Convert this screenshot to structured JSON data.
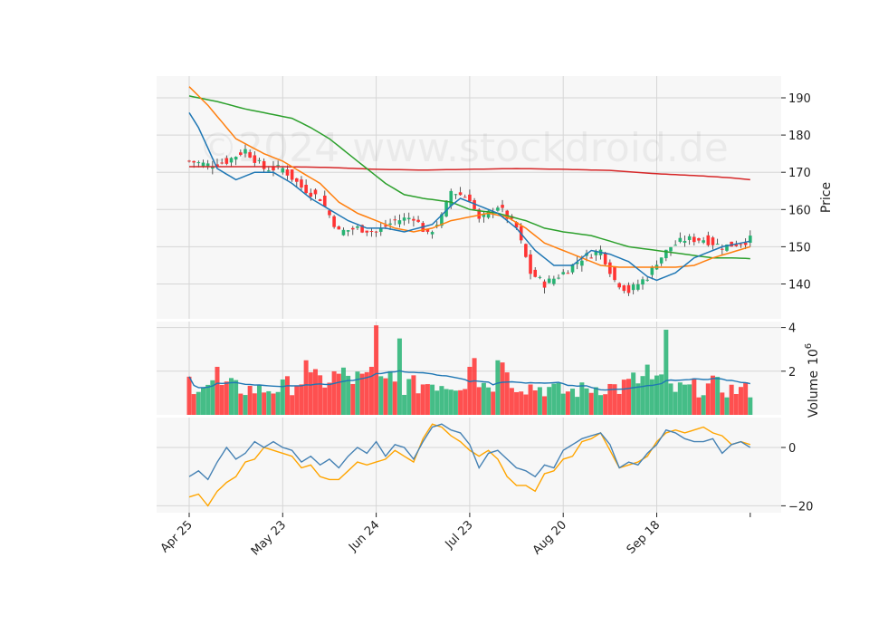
{
  "watermark": "©2024 www.stockdroid.de",
  "colors": {
    "up": "#26b373",
    "down": "#ff3333",
    "sma10": "#1f77b4",
    "sma20": "#ff7f0e",
    "sma50": "#2ca02c",
    "sma200": "#d62728",
    "volume_avg": "#1f77b4",
    "osc_fast": "#4682b4",
    "osc_slow": "#ffa500",
    "panel_bg": "#f7f7f7",
    "grid": "#d6d6d6"
  },
  "chart_data": {
    "type": "candlestick",
    "x_tick_labels": [
      "Apr 25",
      "May 23",
      "Jun 24",
      "Jul 23",
      "Aug 20",
      "Sep 18"
    ],
    "x_tick_index": [
      0,
      20,
      40,
      60,
      80,
      100
    ],
    "price_axis": {
      "label": "Price",
      "ylim": [
        135,
        195
      ],
      "ticks": [
        140,
        150,
        160,
        170,
        180,
        190
      ]
    },
    "volume_axis": {
      "label": "Volume",
      "multiplier_label": "10",
      "multiplier_exp": "6",
      "ylim": [
        0,
        4.2
      ],
      "ticks": [
        2,
        4
      ]
    },
    "oscillator_axis": {
      "ylim": [
        -22,
        11
      ],
      "ticks": [
        -20,
        0
      ]
    },
    "price_anchors": [
      [
        0,
        173
      ],
      [
        4,
        172
      ],
      [
        8,
        173
      ],
      [
        12,
        176
      ],
      [
        16,
        171
      ],
      [
        20,
        171
      ],
      [
        24,
        166
      ],
      [
        28,
        163
      ],
      [
        32,
        154
      ],
      [
        36,
        155
      ],
      [
        40,
        154
      ],
      [
        44,
        157
      ],
      [
        48,
        158
      ],
      [
        51,
        153
      ],
      [
        54,
        158
      ],
      [
        56,
        165
      ],
      [
        60,
        163
      ],
      [
        62,
        157
      ],
      [
        66,
        161
      ],
      [
        70,
        155
      ],
      [
        73,
        143
      ],
      [
        76,
        140
      ],
      [
        80,
        143
      ],
      [
        84,
        147
      ],
      [
        88,
        149
      ],
      [
        91,
        141
      ],
      [
        94,
        138
      ],
      [
        98,
        142
      ],
      [
        100,
        146
      ],
      [
        103,
        150
      ],
      [
        106,
        152
      ],
      [
        110,
        152
      ],
      [
        114,
        150
      ],
      [
        118,
        151
      ],
      [
        120,
        152
      ]
    ],
    "volume_anchors": [
      [
        0,
        1.6
      ],
      [
        5,
        1.4
      ],
      [
        10,
        1.3
      ],
      [
        15,
        1.2
      ],
      [
        20,
        1.3
      ],
      [
        24,
        1.7
      ],
      [
        28,
        1.6
      ],
      [
        32,
        1.9
      ],
      [
        36,
        1.7
      ],
      [
        40,
        1.6
      ],
      [
        44,
        1.5
      ],
      [
        48,
        1.4
      ],
      [
        52,
        1.6
      ],
      [
        56,
        1.5
      ],
      [
        60,
        1.7
      ],
      [
        64,
        1.5
      ],
      [
        68,
        1.8
      ],
      [
        72,
        1.4
      ],
      [
        76,
        1.3
      ],
      [
        80,
        1.1
      ],
      [
        84,
        1.2
      ],
      [
        88,
        1.4
      ],
      [
        92,
        1.3
      ],
      [
        96,
        1.7
      ],
      [
        100,
        1.6
      ],
      [
        104,
        1.2
      ],
      [
        108,
        1.3
      ],
      [
        112,
        1.4
      ],
      [
        116,
        1.2
      ],
      [
        120,
        1.2
      ]
    ],
    "volume_spikes": [
      [
        6,
        2.2
      ],
      [
        25,
        2.5
      ],
      [
        39,
        2.2
      ],
      [
        40,
        4.1
      ],
      [
        43,
        2.0
      ],
      [
        45,
        3.5
      ],
      [
        60,
        2.2
      ],
      [
        61,
        2.6
      ],
      [
        66,
        2.5
      ],
      [
        67,
        2.4
      ],
      [
        98,
        2.3
      ],
      [
        102,
        3.9
      ]
    ],
    "sma10_anchors": [
      [
        0,
        186
      ],
      [
        2,
        182
      ],
      [
        6,
        171
      ],
      [
        10,
        168
      ],
      [
        14,
        170
      ],
      [
        18,
        170
      ],
      [
        22,
        167
      ],
      [
        26,
        163
      ],
      [
        30,
        160
      ],
      [
        34,
        157
      ],
      [
        38,
        155
      ],
      [
        42,
        155
      ],
      [
        46,
        154
      ],
      [
        52,
        156
      ],
      [
        56,
        161
      ],
      [
        58,
        163
      ],
      [
        62,
        161
      ],
      [
        66,
        159
      ],
      [
        70,
        155
      ],
      [
        74,
        149
      ],
      [
        78,
        145
      ],
      [
        82,
        145
      ],
      [
        86,
        149
      ],
      [
        90,
        148
      ],
      [
        94,
        146
      ],
      [
        98,
        142
      ],
      [
        100,
        141
      ],
      [
        104,
        143
      ],
      [
        108,
        147
      ],
      [
        114,
        150
      ],
      [
        120,
        151.5
      ]
    ],
    "sma20_anchors": [
      [
        0,
        193
      ],
      [
        4,
        188
      ],
      [
        10,
        179
      ],
      [
        16,
        175
      ],
      [
        20,
        173
      ],
      [
        24,
        170
      ],
      [
        28,
        167
      ],
      [
        32,
        162
      ],
      [
        36,
        159
      ],
      [
        40,
        157
      ],
      [
        44,
        155
      ],
      [
        48,
        154
      ],
      [
        52,
        155
      ],
      [
        56,
        157
      ],
      [
        60,
        158
      ],
      [
        64,
        159
      ],
      [
        68,
        158
      ],
      [
        72,
        155
      ],
      [
        76,
        151
      ],
      [
        80,
        149
      ],
      [
        84,
        147
      ],
      [
        88,
        145
      ],
      [
        92,
        144.5
      ],
      [
        96,
        144.5
      ],
      [
        100,
        144.5
      ],
      [
        104,
        144.5
      ],
      [
        108,
        145
      ],
      [
        112,
        147
      ],
      [
        116,
        148.5
      ],
      [
        120,
        150
      ]
    ],
    "sma50_anchors": [
      [
        0,
        190.5
      ],
      [
        6,
        189
      ],
      [
        12,
        187
      ],
      [
        18,
        185.5
      ],
      [
        22,
        184.5
      ],
      [
        26,
        182
      ],
      [
        30,
        179
      ],
      [
        34,
        175
      ],
      [
        38,
        171
      ],
      [
        42,
        167
      ],
      [
        46,
        164
      ],
      [
        50,
        163
      ],
      [
        56,
        162
      ],
      [
        60,
        160
      ],
      [
        66,
        159
      ],
      [
        72,
        157
      ],
      [
        76,
        155
      ],
      [
        80,
        154
      ],
      [
        86,
        153
      ],
      [
        90,
        151.5
      ],
      [
        94,
        150
      ],
      [
        100,
        149
      ],
      [
        106,
        148
      ],
      [
        112,
        147
      ],
      [
        116,
        147
      ],
      [
        120,
        146.8
      ]
    ],
    "sma200_anchors": [
      [
        0,
        171.5
      ],
      [
        20,
        171.5
      ],
      [
        30,
        171.3
      ],
      [
        40,
        170.8
      ],
      [
        50,
        170.6
      ],
      [
        60,
        170.8
      ],
      [
        70,
        171
      ],
      [
        80,
        170.8
      ],
      [
        90,
        170.5
      ],
      [
        100,
        169.6
      ],
      [
        110,
        169
      ],
      [
        116,
        168.5
      ],
      [
        120,
        168
      ]
    ],
    "osc_fast_anchors": [
      [
        0,
        -10
      ],
      [
        2,
        -8
      ],
      [
        4,
        -11
      ],
      [
        6,
        -5
      ],
      [
        8,
        0
      ],
      [
        10,
        -4
      ],
      [
        12,
        -2
      ],
      [
        14,
        2
      ],
      [
        16,
        0
      ],
      [
        18,
        2
      ],
      [
        20,
        0
      ],
      [
        22,
        -1
      ],
      [
        24,
        -5
      ],
      [
        26,
        -3
      ],
      [
        28,
        -6
      ],
      [
        30,
        -4
      ],
      [
        32,
        -7
      ],
      [
        34,
        -3
      ],
      [
        36,
        0
      ],
      [
        38,
        -2
      ],
      [
        40,
        2
      ],
      [
        42,
        -3
      ],
      [
        44,
        1
      ],
      [
        46,
        0
      ],
      [
        48,
        -4
      ],
      [
        50,
        2
      ],
      [
        52,
        7
      ],
      [
        54,
        8
      ],
      [
        56,
        6
      ],
      [
        58,
        5
      ],
      [
        60,
        1
      ],
      [
        62,
        -7
      ],
      [
        64,
        -2
      ],
      [
        66,
        -1
      ],
      [
        68,
        -4
      ],
      [
        70,
        -7
      ],
      [
        72,
        -8
      ],
      [
        74,
        -10
      ],
      [
        76,
        -6
      ],
      [
        78,
        -7
      ],
      [
        80,
        -1
      ],
      [
        82,
        1
      ],
      [
        84,
        3
      ],
      [
        86,
        4
      ],
      [
        88,
        5
      ],
      [
        90,
        1
      ],
      [
        92,
        -7
      ],
      [
        94,
        -5
      ],
      [
        96,
        -6
      ],
      [
        98,
        -2
      ],
      [
        100,
        1
      ],
      [
        102,
        6
      ],
      [
        104,
        5
      ],
      [
        106,
        3
      ],
      [
        108,
        2
      ],
      [
        110,
        2
      ],
      [
        112,
        3
      ],
      [
        114,
        -2
      ],
      [
        116,
        1
      ],
      [
        118,
        2
      ],
      [
        120,
        0
      ]
    ],
    "osc_slow_anchors": [
      [
        0,
        -17
      ],
      [
        2,
        -16
      ],
      [
        4,
        -20
      ],
      [
        6,
        -15
      ],
      [
        8,
        -12
      ],
      [
        10,
        -10
      ],
      [
        12,
        -5
      ],
      [
        14,
        -4
      ],
      [
        16,
        0
      ],
      [
        18,
        -1
      ],
      [
        20,
        -2
      ],
      [
        22,
        -3
      ],
      [
        24,
        -7
      ],
      [
        26,
        -6
      ],
      [
        28,
        -10
      ],
      [
        30,
        -11
      ],
      [
        32,
        -11
      ],
      [
        34,
        -8
      ],
      [
        36,
        -5
      ],
      [
        38,
        -6
      ],
      [
        40,
        -5
      ],
      [
        42,
        -4
      ],
      [
        44,
        -1
      ],
      [
        46,
        -3
      ],
      [
        48,
        -5
      ],
      [
        50,
        3
      ],
      [
        52,
        8
      ],
      [
        54,
        7
      ],
      [
        56,
        4
      ],
      [
        58,
        2
      ],
      [
        60,
        -1
      ],
      [
        62,
        -3
      ],
      [
        64,
        -1
      ],
      [
        66,
        -4
      ],
      [
        68,
        -10
      ],
      [
        70,
        -13
      ],
      [
        72,
        -13
      ],
      [
        74,
        -15
      ],
      [
        76,
        -9
      ],
      [
        78,
        -8
      ],
      [
        80,
        -4
      ],
      [
        82,
        -3
      ],
      [
        84,
        2
      ],
      [
        86,
        3
      ],
      [
        88,
        5
      ],
      [
        90,
        -1
      ],
      [
        92,
        -7
      ],
      [
        94,
        -6
      ],
      [
        96,
        -5
      ],
      [
        98,
        -3
      ],
      [
        100,
        2
      ],
      [
        102,
        5
      ],
      [
        104,
        6
      ],
      [
        106,
        5
      ],
      [
        108,
        6
      ],
      [
        110,
        7
      ],
      [
        112,
        5
      ],
      [
        114,
        4
      ],
      [
        116,
        1
      ],
      [
        118,
        2
      ],
      [
        120,
        1
      ]
    ]
  }
}
